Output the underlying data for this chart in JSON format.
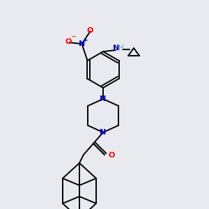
{
  "bg_color": "#e8eaf0",
  "atom_colors": {
    "N": "#0000cc",
    "O": "#ff0000",
    "C": "#000000",
    "H": "#5f9ea0"
  },
  "bond_color": "#000000",
  "bond_width": 1.4,
  "figsize": [
    3.0,
    3.0
  ],
  "dpi": 100
}
